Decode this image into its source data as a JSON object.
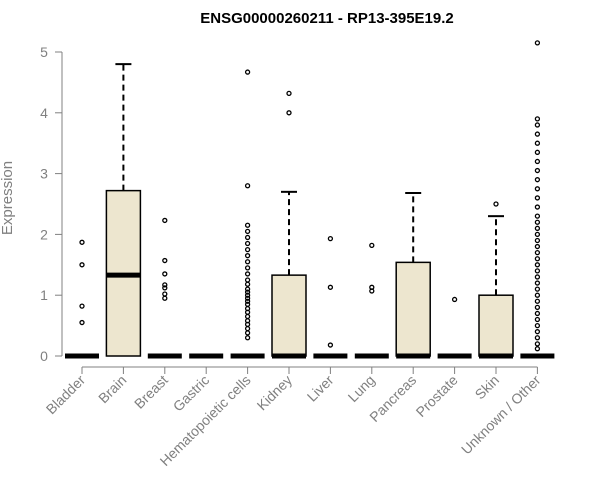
{
  "chart_data": {
    "type": "box",
    "title": "ENSG00000260211 - RP13-395E19.2",
    "xlabel": "",
    "ylabel": "Expression",
    "ylim": [
      0,
      5.2
    ],
    "yticks": [
      0,
      1,
      2,
      3,
      4,
      5
    ],
    "grid": false,
    "legend": "none",
    "colors": {
      "box_fill": "#ede6cf",
      "stroke": "#000000",
      "axis": "#808080",
      "text": "#808080"
    },
    "categories": [
      "Bladder",
      "Brain",
      "Breast",
      "Gastric",
      "Hematopoietic cells",
      "Kidney",
      "Liver",
      "Lung",
      "Pancreas",
      "Prostate",
      "Skin",
      "Unknown / Other"
    ],
    "boxes": [
      {
        "category": "Bladder",
        "q1": 0,
        "median": 0,
        "q3": 0,
        "whisker_low": 0,
        "whisker_high": 0,
        "outliers": [
          0.55,
          0.82,
          1.5,
          1.87
        ]
      },
      {
        "category": "Brain",
        "q1": 0,
        "median": 1.33,
        "q3": 2.72,
        "whisker_low": 0,
        "whisker_high": 4.8,
        "outliers": []
      },
      {
        "category": "Breast",
        "q1": 0,
        "median": 0,
        "q3": 0,
        "whisker_low": 0,
        "whisker_high": 0,
        "outliers": [
          0.95,
          1.02,
          1.12,
          1.17,
          1.35,
          1.57,
          2.23
        ]
      },
      {
        "category": "Gastric",
        "q1": 0,
        "median": 0,
        "q3": 0,
        "whisker_low": 0,
        "whisker_high": 0,
        "outliers": []
      },
      {
        "category": "Hematopoietic cells",
        "q1": 0,
        "median": 0,
        "q3": 0,
        "whisker_low": 0,
        "whisker_high": 0,
        "outliers": [
          0.3,
          0.38,
          0.45,
          0.52,
          0.58,
          0.65,
          0.72,
          0.78,
          0.85,
          0.9,
          0.95,
          1.0,
          1.05,
          1.1,
          1.18,
          1.25,
          1.35,
          1.45,
          1.55,
          1.65,
          1.75,
          1.85,
          1.95,
          2.05,
          2.15,
          2.8,
          4.67
        ]
      },
      {
        "category": "Kidney",
        "q1": 0,
        "median": 0,
        "q3": 1.33,
        "whisker_low": 0,
        "whisker_high": 2.7,
        "outliers": [
          4.0,
          4.32
        ]
      },
      {
        "category": "Liver",
        "q1": 0,
        "median": 0,
        "q3": 0,
        "whisker_low": 0,
        "whisker_high": 0,
        "outliers": [
          0.18,
          1.13,
          1.93
        ]
      },
      {
        "category": "Lung",
        "q1": 0,
        "median": 0,
        "q3": 0,
        "whisker_low": 0,
        "whisker_high": 0,
        "outliers": [
          1.07,
          1.13,
          1.82
        ]
      },
      {
        "category": "Pancreas",
        "q1": 0,
        "median": 0,
        "q3": 1.54,
        "whisker_low": 0,
        "whisker_high": 2.68,
        "outliers": []
      },
      {
        "category": "Prostate",
        "q1": 0,
        "median": 0,
        "q3": 0,
        "whisker_low": 0,
        "whisker_high": 0,
        "outliers": [
          0.93
        ]
      },
      {
        "category": "Skin",
        "q1": 0,
        "median": 0,
        "q3": 1.0,
        "whisker_low": 0,
        "whisker_high": 2.3,
        "outliers": [
          2.5
        ]
      },
      {
        "category": "Unknown / Other",
        "q1": 0,
        "median": 0,
        "q3": 0,
        "whisker_low": 0,
        "whisker_high": 0,
        "outliers": [
          0.12,
          0.2,
          0.3,
          0.4,
          0.5,
          0.6,
          0.7,
          0.8,
          0.9,
          1.0,
          1.1,
          1.2,
          1.3,
          1.4,
          1.5,
          1.6,
          1.7,
          1.8,
          1.9,
          2.0,
          2.1,
          2.2,
          2.3,
          2.45,
          2.6,
          2.75,
          2.9,
          3.05,
          3.2,
          3.35,
          3.5,
          3.65,
          3.8,
          3.9,
          5.15
        ]
      }
    ]
  }
}
